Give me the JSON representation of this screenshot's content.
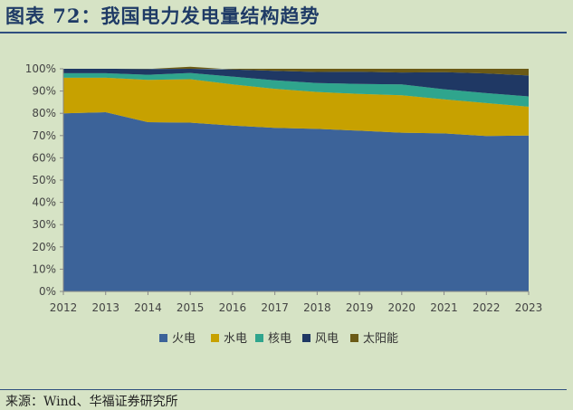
{
  "title": "图表 72：我国电力发电量结构趋势",
  "source": "来源：Wind、华福证券研究所",
  "chart_data": {
    "type": "area",
    "stacked": true,
    "x": [
      "2012",
      "2013",
      "2014",
      "2015",
      "2016",
      "2017",
      "2018",
      "2019",
      "2020",
      "2021",
      "2022",
      "2023"
    ],
    "ylim": [
      0,
      100
    ],
    "yticks": [
      "0%",
      "10%",
      "20%",
      "30%",
      "40%",
      "50%",
      "60%",
      "70%",
      "80%",
      "90%",
      "100%"
    ],
    "grid": false,
    "legend_position": "bottom",
    "series": [
      {
        "name": "火电",
        "color": "#3c6399",
        "values": [
          80,
          80.5,
          76,
          75.8,
          74.5,
          73.5,
          73,
          72.2,
          71.3,
          71,
          69.8,
          70
        ]
      },
      {
        "name": "水电",
        "color": "#c7a100",
        "values": [
          16,
          15.5,
          19,
          19.5,
          18.5,
          17.5,
          16.6,
          16.5,
          16.8,
          15.3,
          14.8,
          13
        ]
      },
      {
        "name": "核电",
        "color": "#2fa58d",
        "values": [
          2,
          2,
          2.3,
          2.8,
          3.5,
          3.8,
          4,
          4.5,
          4.9,
          4.5,
          4.5,
          4.6
        ]
      },
      {
        "name": "风电",
        "color": "#1f3864",
        "values": [
          2,
          2,
          2.6,
          2.8,
          3.2,
          4.3,
          5,
          5.5,
          5.3,
          7.7,
          8.8,
          9.4
        ]
      },
      {
        "name": "太阳能",
        "color": "#6b5a16",
        "values": [
          0,
          0,
          0.1,
          0.1,
          0.3,
          0.9,
          1.4,
          1.3,
          1.7,
          1.5,
          2.1,
          3
        ]
      }
    ]
  }
}
